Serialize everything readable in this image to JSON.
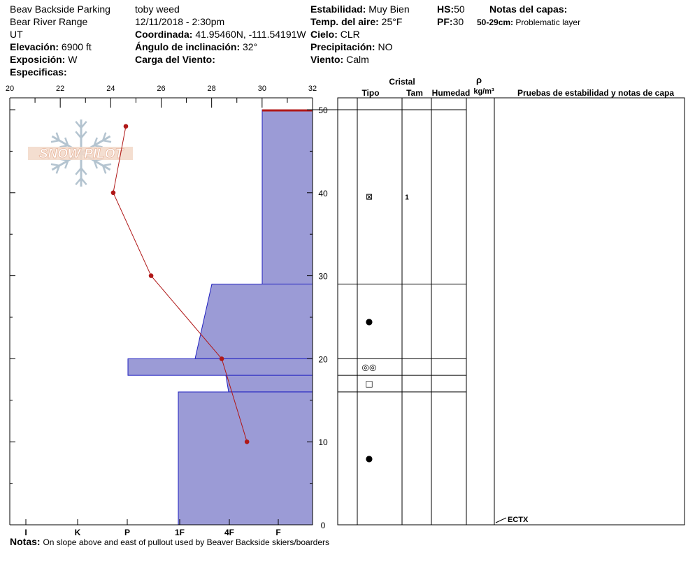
{
  "header": {
    "location": "Beav Backside Parking",
    "range": "Bear River Range",
    "state": "UT",
    "observer": "toby weed",
    "datetime": "12/11/2018 - 2:30pm",
    "elevation_label": "Elevación:",
    "elevation_value": "6900 ft",
    "exposure_label": "Exposición:",
    "exposure_value": "W",
    "specifics_label": "Especificas:",
    "coord_label": "Coordinada:",
    "coord_value": "41.95460N, -111.54191W",
    "slope_label": "Ángulo de inclinación:",
    "slope_value": "32°",
    "wind_load_label": "Carga del Viento:",
    "stability_label": "Estabilidad:",
    "stability_value": "Muy Bien",
    "air_temp_label": "Temp. del aire:",
    "air_temp_value": "25°F",
    "sky_label": "Cielo:",
    "sky_value": "CLR",
    "precip_label": "Precipitación:",
    "precip_value": "NO",
    "wind_label": "Viento:",
    "wind_value": "Calm",
    "hs_label": "HS:",
    "hs_value": "50",
    "pf_label": "PF:",
    "pf_value": "30",
    "layer_notes_label": "Notas del capas:",
    "layer_note_range": "50-29cm:",
    "layer_note_text": "Problematic layer"
  },
  "notes": {
    "label": "Notas:",
    "text": "On slope above and east of pullout used by Beaver Backside skiers/boarders"
  },
  "logo_text": "SNOW PILOT",
  "table_headers": {
    "cristal": "Cristal",
    "tipo": "Tipo",
    "tam": "Tam",
    "humedad": "Humedad",
    "rho": "ρ",
    "density_unit": "kg/m³",
    "tests": "Pruebas de estabilidad y notas de capa"
  },
  "test_result": "ECTX",
  "chart_data": {
    "type": "snow_profile",
    "temperature_axis": {
      "ticks": [
        20,
        22,
        24,
        26,
        28,
        30,
        32
      ],
      "range": [
        20,
        32
      ]
    },
    "height_axis": {
      "ticks": [
        0,
        10,
        20,
        30,
        40,
        50
      ],
      "range": [
        0,
        50
      ],
      "unit": "cm"
    },
    "hardness_axis": {
      "ticks": [
        "I",
        "K",
        "P",
        "1F",
        "4F",
        "F"
      ]
    },
    "temperature_profile": [
      {
        "height": 48,
        "temp": 24.6
      },
      {
        "height": 40,
        "temp": 24.1
      },
      {
        "height": 30,
        "temp": 25.6
      },
      {
        "height": 20,
        "temp": 28.4
      },
      {
        "height": 10,
        "temp": 29.4
      }
    ],
    "layers": [
      {
        "top": 50,
        "bottom": 29,
        "crystal_symbol": "⊠",
        "size": "1",
        "crystal_height": 39.5
      },
      {
        "top": 29,
        "bottom": 20,
        "crystal_symbol": "●",
        "size": "",
        "crystal_height": 24.5
      },
      {
        "top": 20,
        "bottom": 18,
        "crystal_symbol": "◎◎",
        "size": "",
        "crystal_height": 19
      },
      {
        "top": 18,
        "bottom": 16,
        "crystal_symbol": "□",
        "size": "",
        "crystal_height": 17
      },
      {
        "top": 16,
        "bottom": 0,
        "crystal_symbol": "●",
        "size": "",
        "crystal_height": 8
      }
    ],
    "test_height": 0
  }
}
